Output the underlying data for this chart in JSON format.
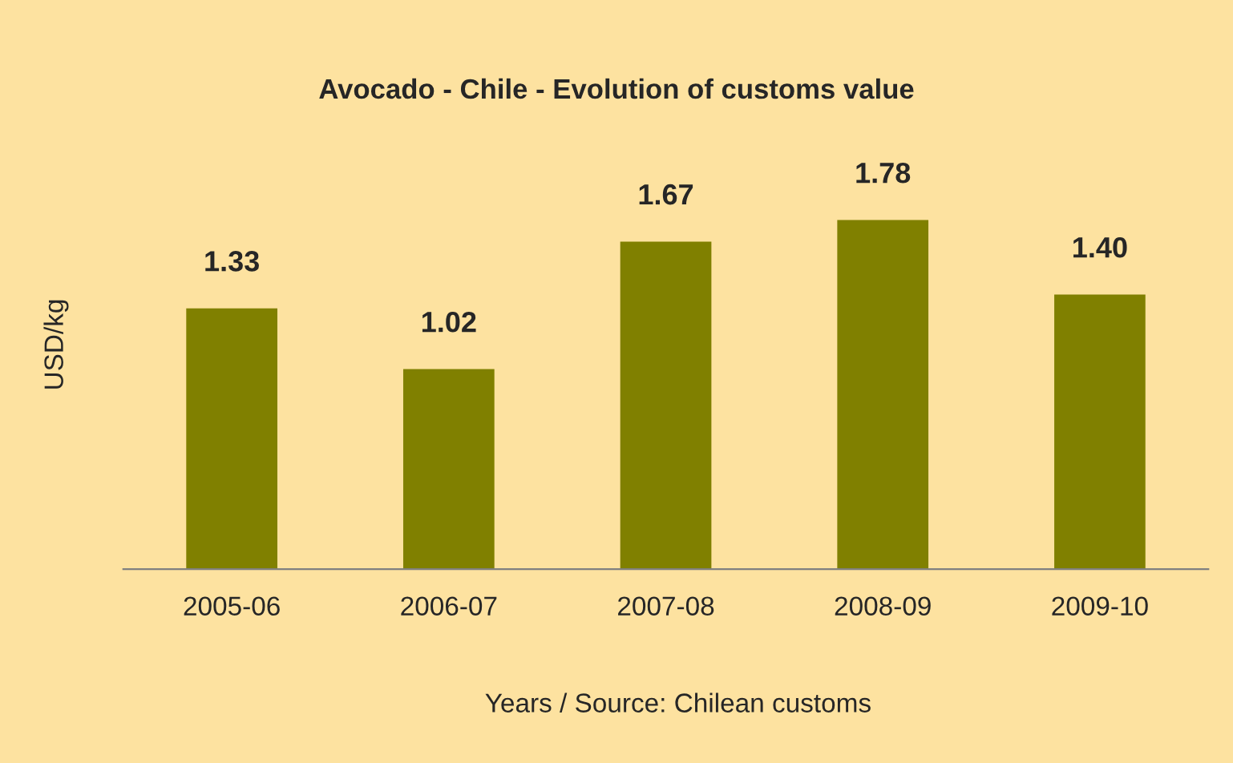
{
  "chart_data": {
    "type": "bar",
    "title": "Avocado - Chile - Evolution of customs value",
    "xlabel": "Years / Source: Chilean customs",
    "ylabel": "USD/kg",
    "categories": [
      "2005-06",
      "2006-07",
      "2007-08",
      "2008-09",
      "2009-10"
    ],
    "values": [
      1.33,
      1.02,
      1.67,
      1.78,
      1.4
    ],
    "value_labels": [
      "1.33",
      "1.02",
      "1.67",
      "1.78",
      "1.40"
    ],
    "color": "#808000",
    "grid": false
  }
}
